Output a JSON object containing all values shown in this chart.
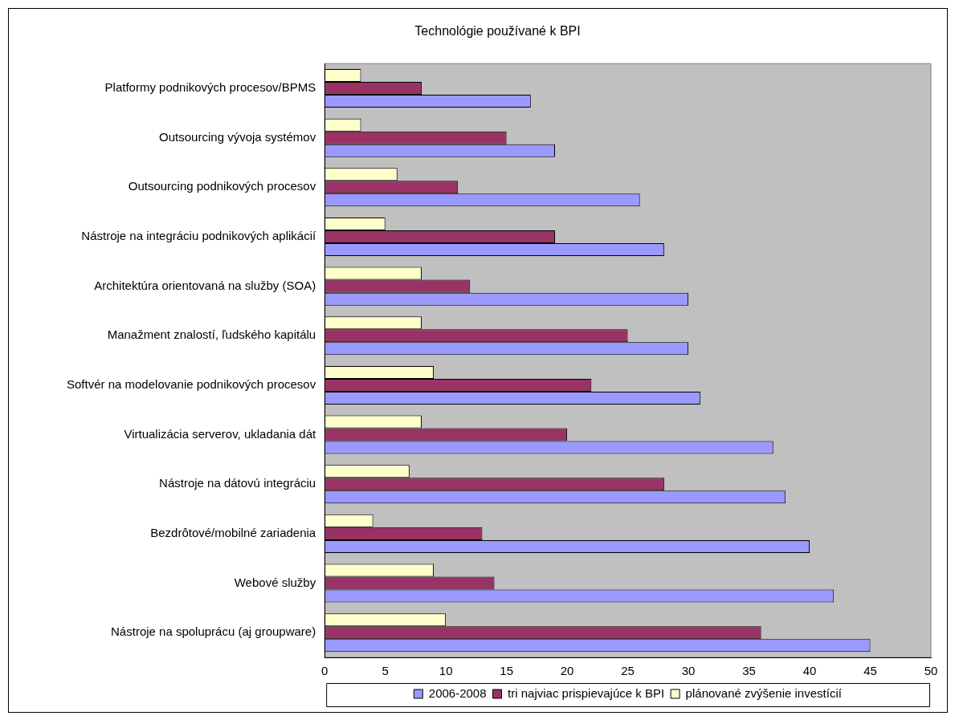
{
  "chart_data": {
    "type": "bar",
    "orientation": "horizontal",
    "title": "Technológie používané k BPI",
    "categories": [
      "Platformy podnikových procesov/BPMS",
      "Outsourcing vývoja systémov",
      "Outsourcing podnikových procesov",
      "Nástroje na integráciu podnikových aplikácií",
      "Architektúra orientovaná na služby (SOA)",
      "Manažment znalostí, ľudského kapitálu",
      "Softvér na modelovanie podnikových procesov",
      "Virtualizácia serverov, ukladania dát",
      "Nástroje na dátovú integráciu",
      "Bezdrôtové/mobilné zariadenia",
      "Webové služby",
      "Nástroje na spoluprácu (aj groupware)"
    ],
    "series": [
      {
        "name": "2006-2008",
        "color": "#9999ff",
        "values": [
          17,
          19,
          26,
          28,
          30,
          30,
          31,
          37,
          38,
          40,
          42,
          45
        ]
      },
      {
        "name": "tri najviac prispievajúce k BPI",
        "color": "#993366",
        "values": [
          8,
          15,
          11,
          19,
          12,
          25,
          22,
          20,
          28,
          13,
          14,
          36
        ]
      },
      {
        "name": "plánované zvýšenie investícií",
        "color": "#ffffcc",
        "values": [
          3,
          3,
          6,
          5,
          8,
          8,
          9,
          8,
          7,
          4,
          9,
          10
        ]
      }
    ],
    "xlim": [
      0,
      50
    ],
    "xticks": [
      0,
      5,
      10,
      15,
      20,
      25,
      30,
      35,
      40,
      45,
      50
    ],
    "grid": false,
    "legend": "bottom"
  }
}
